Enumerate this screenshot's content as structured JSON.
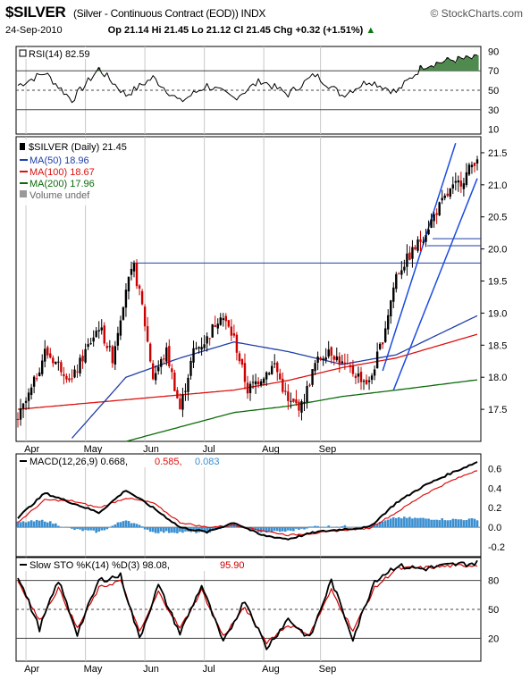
{
  "header": {
    "symbol": "$SILVER",
    "description": "(Silver - Continuous Contract (EOD)) INDX",
    "brand": "© StockCharts.com",
    "date": "24-Sep-2010",
    "open": "Op 21.14",
    "high": "Hi 21.45",
    "low": "Lo 21.12",
    "close": "Cl 21.45",
    "change": "Chg +0.32 (+1.51%)",
    "change_arrow": "▲"
  },
  "colors": {
    "price_up": "#000000",
    "price_down": "#cc0000",
    "ma50": "#1f3fa8",
    "ma100": "#dd1111",
    "ma200": "#0a6b0a",
    "trend": "#1a4be0",
    "rsi_fill": "#4f8a4f",
    "macd_hist": "#3a8fd0",
    "stoch_d": "#cc0000"
  },
  "rsi": {
    "label": "RSI(14) 82.59",
    "ticks": [
      "90",
      "70",
      "50",
      "30",
      "10"
    ]
  },
  "price": {
    "label": "$SILVER (Daily) 21.45",
    "legend": [
      {
        "text": "MA(50) 18.96",
        "color": "#1f3fa8"
      },
      {
        "text": "MA(100) 18.67",
        "color": "#dd1111"
      },
      {
        "text": "MA(200) 17.96",
        "color": "#0a6b0a"
      },
      {
        "text": "Volume undef",
        "color": "#666666"
      }
    ],
    "ticks": [
      "21.5",
      "21.0",
      "20.5",
      "20.0",
      "19.5",
      "19.0",
      "18.5",
      "18.0",
      "17.5"
    ],
    "months": [
      "Apr",
      "May",
      "Jun",
      "Jul",
      "Aug",
      "Sep"
    ]
  },
  "macd": {
    "label_main": "MACD(12,26,9) 0.668,",
    "label_signal": "0.585,",
    "label_hist": "0.083",
    "ticks": [
      "0.6",
      "0.4",
      "0.2",
      "0.0",
      "-0.2"
    ]
  },
  "stoch": {
    "label_main": "Slow STO %K(14) %D(3) 98.08,",
    "label_d": "95.90",
    "ticks": [
      "80",
      "50",
      "20"
    ],
    "months": [
      "Apr",
      "May",
      "Jun",
      "Jul",
      "Aug",
      "Sep"
    ]
  },
  "chart_data": [
    {
      "type": "line",
      "title": "RSI(14) 82.59",
      "x_range": [
        "2010-03-29",
        "2010-09-24"
      ],
      "ylim": [
        0,
        100
      ],
      "ytick_labels": [
        "90",
        "70",
        "50",
        "30",
        "10"
      ],
      "reference_levels": [
        70,
        50,
        30
      ],
      "series": [
        {
          "name": "RSI(14)",
          "points": [
            [
              0,
              55
            ],
            [
              10,
              68
            ],
            [
              20,
              40
            ],
            [
              30,
              72
            ],
            [
              40,
              45
            ],
            [
              50,
              63
            ],
            [
              60,
              38
            ],
            [
              70,
              55
            ],
            [
              80,
              42
            ],
            [
              90,
              60
            ],
            [
              100,
              46
            ],
            [
              110,
              66
            ],
            [
              120,
              45
            ],
            [
              130,
              60
            ],
            [
              140,
              48
            ],
            [
              150,
              75
            ],
            [
              160,
              81
            ],
            [
              170,
              83
            ]
          ]
        }
      ]
    },
    {
      "type": "line",
      "title": "$SILVER (Daily) 21.45",
      "x_range": [
        "2010-03-29",
        "2010-09-24"
      ],
      "ylim": [
        17.0,
        21.75
      ],
      "ytick_labels": [
        "21.5",
        "21.0",
        "20.5",
        "20.0",
        "19.5",
        "19.0",
        "18.5",
        "18.0",
        "17.5"
      ],
      "xtick_labels": [
        "Apr",
        "May",
        "Jun",
        "Jul",
        "Aug",
        "Sep"
      ],
      "series": [
        {
          "name": "$SILVER",
          "points": [
            [
              0,
              17.35
            ],
            [
              5,
              17.8
            ],
            [
              10,
              18.4
            ],
            [
              15,
              18.2
            ],
            [
              20,
              17.95
            ],
            [
              25,
              18.4
            ],
            [
              30,
              18.8
            ],
            [
              35,
              18.3
            ],
            [
              40,
              19.4
            ],
            [
              43,
              19.7
            ],
            [
              46,
              19.1
            ],
            [
              50,
              18.0
            ],
            [
              55,
              18.4
            ],
            [
              60,
              17.5
            ],
            [
              65,
              18.4
            ],
            [
              70,
              18.6
            ],
            [
              75,
              19.0
            ],
            [
              80,
              18.6
            ],
            [
              85,
              17.8
            ],
            [
              90,
              18.0
            ],
            [
              95,
              18.2
            ],
            [
              100,
              17.6
            ],
            [
              105,
              17.55
            ],
            [
              110,
              18.2
            ],
            [
              115,
              18.45
            ],
            [
              120,
              18.2
            ],
            [
              125,
              18.05
            ],
            [
              130,
              17.9
            ],
            [
              135,
              18.6
            ],
            [
              140,
              19.6
            ],
            [
              145,
              19.9
            ],
            [
              150,
              20.2
            ],
            [
              155,
              20.6
            ],
            [
              160,
              20.9
            ],
            [
              165,
              21.1
            ],
            [
              170,
              21.45
            ]
          ]
        },
        {
          "name": "MA(50)",
          "points": [
            [
              20,
              17.05
            ],
            [
              40,
              18.0
            ],
            [
              60,
              18.3
            ],
            [
              80,
              18.55
            ],
            [
              100,
              18.4
            ],
            [
              120,
              18.2
            ],
            [
              140,
              18.35
            ],
            [
              170,
              18.96
            ]
          ]
        },
        {
          "name": "MA(100)",
          "points": [
            [
              0,
              17.5
            ],
            [
              40,
              17.65
            ],
            [
              80,
              17.8
            ],
            [
              100,
              17.95
            ],
            [
              120,
              18.15
            ],
            [
              140,
              18.3
            ],
            [
              170,
              18.67
            ]
          ]
        },
        {
          "name": "MA(200)",
          "points": [
            [
              40,
              17.0
            ],
            [
              80,
              17.45
            ],
            [
              100,
              17.55
            ],
            [
              120,
              17.7
            ],
            [
              140,
              17.8
            ],
            [
              170,
              17.96
            ]
          ]
        }
      ]
    },
    {
      "type": "line",
      "title": "MACD(12,26,9) 0.668, 0.585, 0.083",
      "x_range": [
        "2010-03-29",
        "2010-09-24"
      ],
      "ylim": [
        -0.3,
        0.75
      ],
      "ytick_labels": [
        "0.6",
        "0.4",
        "0.2",
        "0.0",
        "-0.2"
      ],
      "series": [
        {
          "name": "MACD",
          "points": [
            [
              0,
              0.1
            ],
            [
              10,
              0.35
            ],
            [
              20,
              0.25
            ],
            [
              30,
              0.15
            ],
            [
              40,
              0.38
            ],
            [
              50,
              0.2
            ],
            [
              60,
              0.0
            ],
            [
              70,
              -0.05
            ],
            [
              80,
              0.05
            ],
            [
              90,
              -0.08
            ],
            [
              100,
              -0.12
            ],
            [
              110,
              -0.05
            ],
            [
              120,
              -0.02
            ],
            [
              130,
              0.0
            ],
            [
              140,
              0.25
            ],
            [
              150,
              0.42
            ],
            [
              160,
              0.55
            ],
            [
              170,
              0.668
            ]
          ]
        },
        {
          "name": "Signal",
          "points": [
            [
              0,
              0.05
            ],
            [
              10,
              0.28
            ],
            [
              20,
              0.27
            ],
            [
              30,
              0.2
            ],
            [
              40,
              0.3
            ],
            [
              50,
              0.25
            ],
            [
              60,
              0.05
            ],
            [
              70,
              0.0
            ],
            [
              80,
              0.02
            ],
            [
              90,
              -0.03
            ],
            [
              100,
              -0.08
            ],
            [
              110,
              -0.06
            ],
            [
              120,
              -0.03
            ],
            [
              130,
              -0.01
            ],
            [
              140,
              0.15
            ],
            [
              150,
              0.33
            ],
            [
              160,
              0.47
            ],
            [
              170,
              0.585
            ]
          ]
        },
        {
          "name": "Histogram",
          "points": [
            [
              0,
              0.05
            ],
            [
              10,
              0.07
            ],
            [
              20,
              -0.02
            ],
            [
              30,
              -0.05
            ],
            [
              40,
              0.08
            ],
            [
              50,
              -0.05
            ],
            [
              60,
              -0.05
            ],
            [
              70,
              -0.05
            ],
            [
              80,
              0.03
            ],
            [
              90,
              -0.05
            ],
            [
              100,
              -0.04
            ],
            [
              110,
              0.01
            ],
            [
              120,
              0.01
            ],
            [
              130,
              0.01
            ],
            [
              140,
              0.1
            ],
            [
              150,
              0.09
            ],
            [
              160,
              0.08
            ],
            [
              170,
              0.083
            ]
          ]
        }
      ]
    },
    {
      "type": "line",
      "title": "Slow STO %K(14) %D(3) 98.08, 95.90",
      "x_range": [
        "2010-03-29",
        "2010-09-24"
      ],
      "ylim": [
        0,
        100
      ],
      "ytick_labels": [
        "80",
        "50",
        "20"
      ],
      "xtick_labels": [
        "Apr",
        "May",
        "Jun",
        "Jul",
        "Aug",
        "Sep"
      ],
      "reference_levels": [
        80,
        50,
        20
      ],
      "series": [
        {
          "name": "%K",
          "points": [
            [
              0,
              85
            ],
            [
              8,
              30
            ],
            [
              15,
              80
            ],
            [
              22,
              25
            ],
            [
              30,
              80
            ],
            [
              38,
              85
            ],
            [
              45,
              20
            ],
            [
              52,
              75
            ],
            [
              60,
              25
            ],
            [
              68,
              75
            ],
            [
              76,
              15
            ],
            [
              84,
              60
            ],
            [
              92,
              10
            ],
            [
              100,
              40
            ],
            [
              108,
              20
            ],
            [
              116,
              80
            ],
            [
              124,
              20
            ],
            [
              132,
              80
            ],
            [
              140,
              95
            ],
            [
              150,
              92
            ],
            [
              160,
              96
            ],
            [
              170,
              98.08
            ]
          ]
        },
        {
          "name": "%D",
          "points": [
            [
              0,
              80
            ],
            [
              8,
              38
            ],
            [
              15,
              72
            ],
            [
              22,
              30
            ],
            [
              30,
              72
            ],
            [
              38,
              80
            ],
            [
              45,
              26
            ],
            [
              52,
              68
            ],
            [
              60,
              30
            ],
            [
              68,
              70
            ],
            [
              76,
              22
            ],
            [
              84,
              52
            ],
            [
              92,
              16
            ],
            [
              100,
              34
            ],
            [
              108,
              24
            ],
            [
              116,
              70
            ],
            [
              124,
              28
            ],
            [
              132,
              72
            ],
            [
              140,
              92
            ],
            [
              150,
              93
            ],
            [
              160,
              95
            ],
            [
              170,
              95.9
            ]
          ]
        }
      ]
    }
  ]
}
